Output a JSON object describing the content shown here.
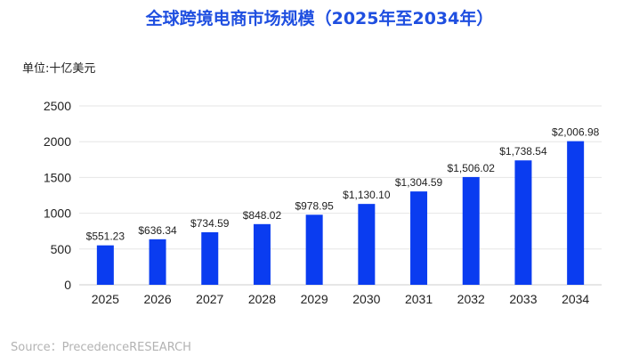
{
  "chart_data": {
    "type": "bar",
    "title": "全球跨境电商市场规模（2025年至2034年）",
    "unit_label": "单位:十亿美元",
    "categories": [
      "2025",
      "2026",
      "2027",
      "2028",
      "2029",
      "2030",
      "2031",
      "2032",
      "2033",
      "2034"
    ],
    "values": [
      551.23,
      636.34,
      734.59,
      848.02,
      978.95,
      1130.1,
      1304.59,
      1506.02,
      1738.54,
      2006.98
    ],
    "data_labels": [
      "$551.23",
      "$636.34",
      "$734.59",
      "$848.02",
      "$978.95",
      "$1,130.10",
      "$1,304.59",
      "$1,506.02",
      "$1,738.54",
      "$2,006.98"
    ],
    "yticks": [
      0,
      500,
      1000,
      1500,
      2000,
      2500
    ],
    "ylim": [
      0,
      2500
    ],
    "grid": true,
    "bar_color": "#0a3cf0",
    "source": "Source：PrecedenceRESEARCH"
  }
}
